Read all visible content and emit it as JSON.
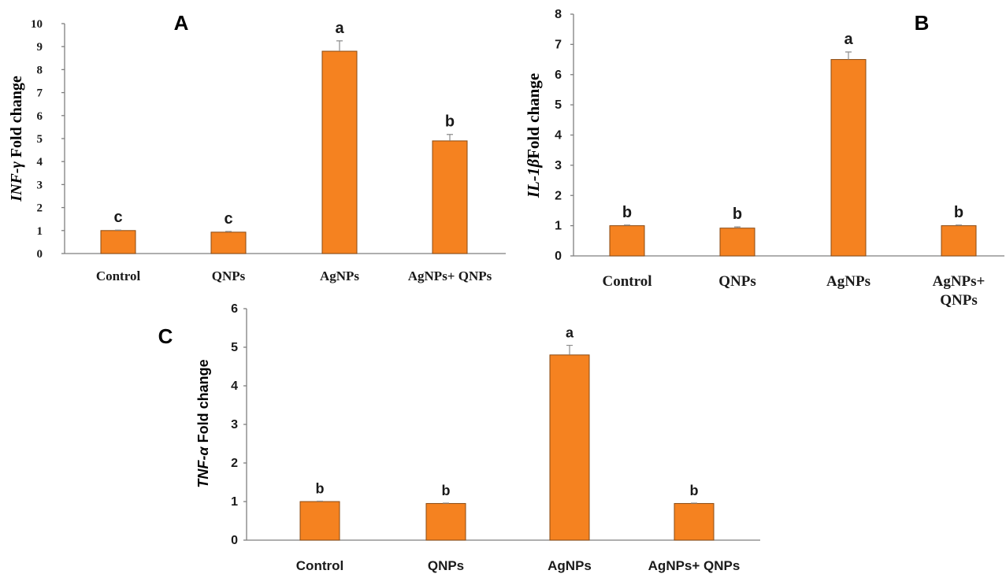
{
  "colors": {
    "bar_fill": "#f58220",
    "bar_stroke": "#8a4a12",
    "axis": "#7f7f7f",
    "text": "#1a1a1a"
  },
  "chart_data": [
    {
      "type": "bar",
      "panel_label": "A",
      "ylabel": "INF-γ Fold change",
      "ylabel_italic": "INF-γ",
      "ylabel_rest": " Fold change",
      "categories": [
        "Control",
        "QNPs",
        "AgNPs",
        "AgNPs+ QNPs"
      ],
      "values": [
        1.0,
        0.93,
        8.8,
        4.9
      ],
      "errors": [
        0.02,
        0.03,
        0.45,
        0.28
      ],
      "significance_letters": [
        "c",
        "c",
        "a",
        "b"
      ],
      "ylim": [
        0,
        10
      ],
      "yticks": [
        "0",
        "1",
        "2",
        "3",
        "4",
        "5",
        "6",
        "7",
        "8",
        "9",
        "10"
      ],
      "grid": false,
      "legend": "none"
    },
    {
      "type": "bar",
      "panel_label": "B",
      "ylabel": "IL-1β Fold change",
      "ylabel_italic": "IL-1β",
      "ylabel_rest": "Fold change",
      "categories": [
        "Control",
        "QNPs",
        "AgNPs",
        "AgNPs+ QNPs"
      ],
      "values": [
        1.0,
        0.92,
        6.5,
        1.0
      ],
      "errors": [
        0.02,
        0.04,
        0.25,
        0.02
      ],
      "significance_letters": [
        "b",
        "b",
        "a",
        "b"
      ],
      "ylim": [
        0,
        8
      ],
      "yticks": [
        "0",
        "1",
        "2",
        "3",
        "4",
        "5",
        "6",
        "7",
        "8"
      ],
      "grid": false,
      "legend": "none"
    },
    {
      "type": "bar",
      "panel_label": "C",
      "ylabel": "TNF-α Fold change",
      "ylabel_italic": "TNF-α",
      "ylabel_rest": " Fold change",
      "categories": [
        "Control",
        "QNPs",
        "AgNPs",
        "AgNPs+ QNPs"
      ],
      "values": [
        1.0,
        0.95,
        4.8,
        0.95
      ],
      "errors": [
        0.01,
        0.01,
        0.25,
        0.01
      ],
      "significance_letters": [
        "b",
        "b",
        "a",
        "b"
      ],
      "ylim": [
        0,
        6
      ],
      "yticks": [
        "0",
        "1",
        "2",
        "3",
        "4",
        "5",
        "6"
      ],
      "grid": false,
      "legend": "none"
    }
  ]
}
